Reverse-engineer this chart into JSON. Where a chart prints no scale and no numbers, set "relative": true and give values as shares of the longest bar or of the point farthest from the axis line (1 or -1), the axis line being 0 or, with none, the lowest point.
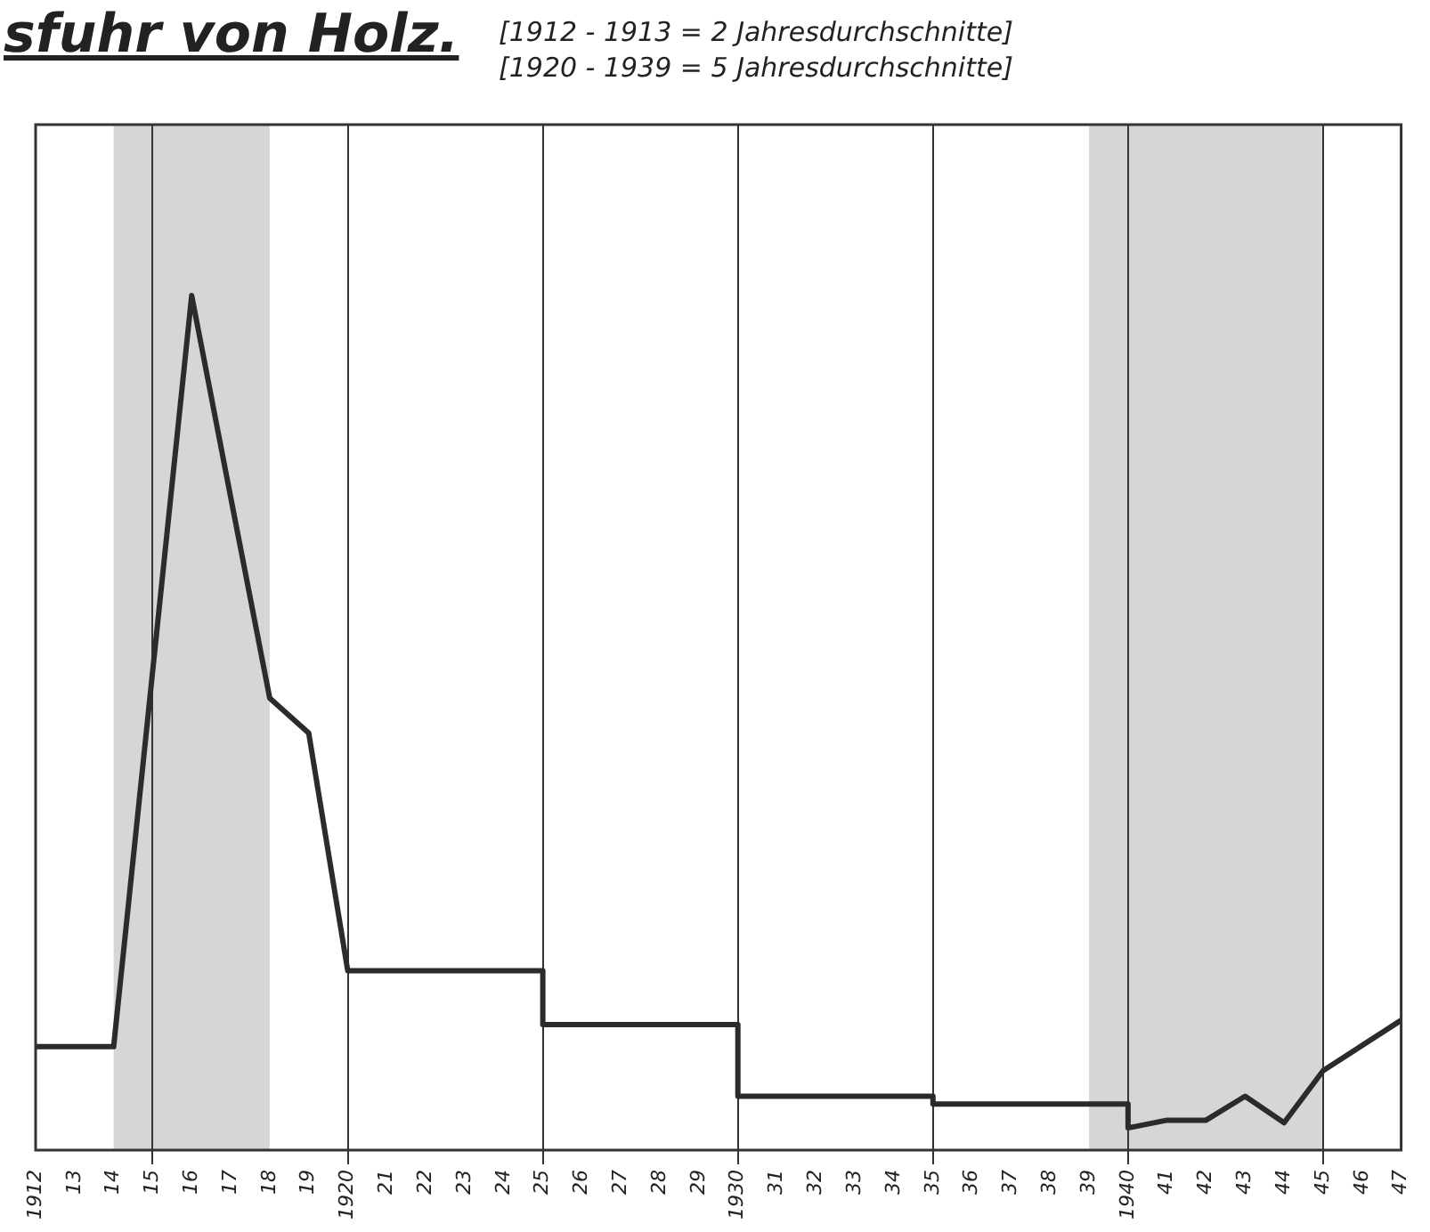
{
  "chart_data": {
    "type": "line",
    "title": "sfuhr von Holz.",
    "annotations": [
      "[1912 - 1913 = 2 Jahresdurchschnitte]",
      "[1920 - 1939 = 5 Jahresdurchschnitte]"
    ],
    "relative": true,
    "x": [
      1912,
      1914,
      1916,
      1917,
      1918,
      1919,
      1920,
      1925,
      1925,
      1930,
      1930,
      1935,
      1935,
      1940,
      1940,
      1941,
      1942,
      1943,
      1944,
      1945,
      1947
    ],
    "series": [
      {
        "color": "#2b2b2b",
        "values": [
          0.121,
          0.121,
          1,
          0.764,
          0.529,
          0.488,
          0.21,
          0.21,
          0.147,
          0.147,
          0.063,
          0.063,
          0.054,
          0.054,
          0.026,
          0.035,
          0.035,
          0.063,
          0.032,
          0.093,
          0.152
        ]
      }
    ],
    "xlim": [
      1912,
      1947
    ],
    "xticks": [
      1912,
      {
        "value": 1913,
        "label": "13"
      },
      {
        "value": 1914,
        "label": "14"
      },
      {
        "value": 1915,
        "label": "15"
      },
      {
        "value": 1916,
        "label": "16"
      },
      {
        "value": 1917,
        "label": "17"
      },
      {
        "value": 1918,
        "label": "18"
      },
      {
        "value": 1919,
        "label": "19"
      },
      1920,
      {
        "value": 1921,
        "label": "21"
      },
      {
        "value": 1922,
        "label": "22"
      },
      {
        "value": 1923,
        "label": "23"
      },
      {
        "value": 1924,
        "label": "24"
      },
      {
        "value": 1925,
        "label": "25"
      },
      {
        "value": 1926,
        "label": "26"
      },
      {
        "value": 1927,
        "label": "27"
      },
      {
        "value": 1928,
        "label": "28"
      },
      {
        "value": 1929,
        "label": "29"
      },
      1930,
      {
        "value": 1931,
        "label": "31"
      },
      {
        "value": 1932,
        "label": "32"
      },
      {
        "value": 1933,
        "label": "33"
      },
      {
        "value": 1934,
        "label": "34"
      },
      {
        "value": 1935,
        "label": "35"
      },
      {
        "value": 1936,
        "label": "36"
      },
      {
        "value": 1937,
        "label": "37"
      },
      {
        "value": 1938,
        "label": "38"
      },
      {
        "value": 1939,
        "label": "39"
      },
      1940,
      {
        "value": 1941,
        "label": "41"
      },
      {
        "value": 1942,
        "label": "42"
      },
      {
        "value": 1943,
        "label": "43"
      },
      {
        "value": 1944,
        "label": "44"
      },
      {
        "value": 1945,
        "label": "45"
      },
      {
        "value": 1946,
        "label": "46"
      },
      {
        "value": 1947,
        "label": "47"
      }
    ],
    "bands": [
      {
        "axis": "x",
        "from": 1914,
        "to": 1918,
        "color": "#444444"
      },
      {
        "axis": "x",
        "from": 1939,
        "to": 1945,
        "color": "#444444"
      }
    ],
    "grid": "x",
    "legend": false,
    "marker": "none",
    "line_style": "solid"
  }
}
